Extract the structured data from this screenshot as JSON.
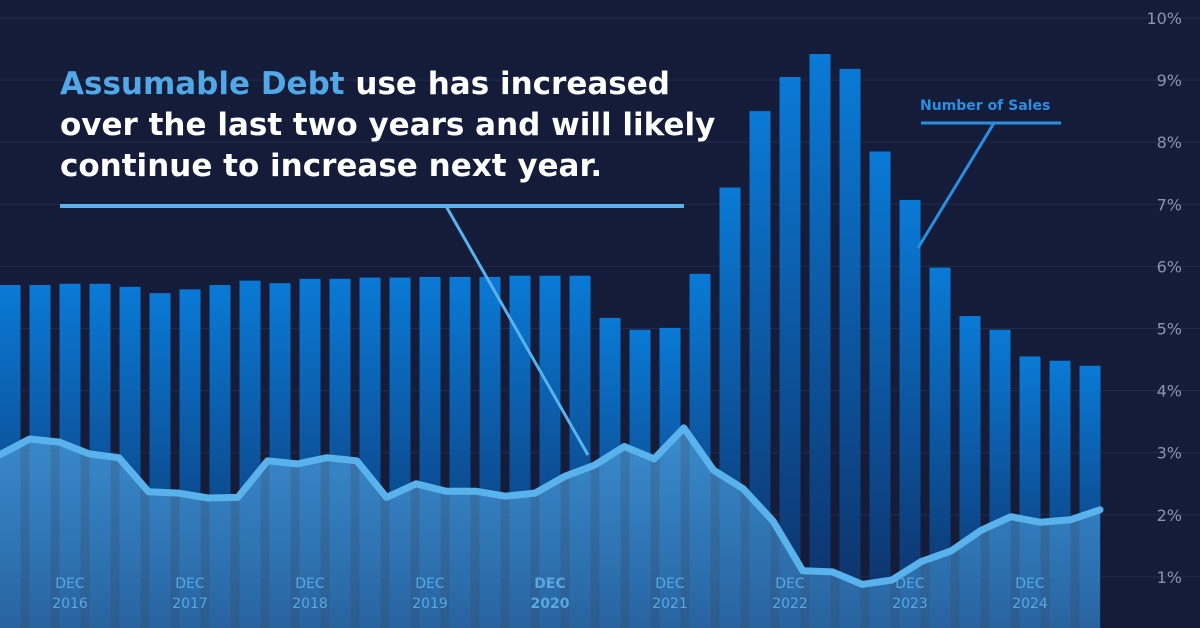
{
  "headline": {
    "highlight": "Assumable Debt",
    "line1_rest": " use has increased",
    "line2": "over the last two years and will likely",
    "line3": "continue to increase next year."
  },
  "colors": {
    "background": "#141c3a",
    "bar_top": "#0a7ad6",
    "bar_bottom": "#0e2f66",
    "line": "#5ab2ec",
    "area": "#3f8fd0",
    "accent_text": "#52a8e6",
    "axis_text": "#8a94b0",
    "series_label": "#2a8fe0"
  },
  "chart_data": {
    "type": "bar",
    "y_axis": {
      "side": "right",
      "range": [
        0.5,
        10
      ],
      "ticks": [
        "1%",
        "2%",
        "3%",
        "4%",
        "5%",
        "6%",
        "7%",
        "8%",
        "9%",
        "10%"
      ]
    },
    "x_tick_labels": [
      {
        "month": "DEC",
        "year": "2016",
        "bar_index": 2
      },
      {
        "month": "DEC",
        "year": "2017",
        "bar_index": 6
      },
      {
        "month": "DEC",
        "year": "2018",
        "bar_index": 10
      },
      {
        "month": "DEC",
        "year": "2019",
        "bar_index": 14
      },
      {
        "month": "DEC",
        "year": "2020",
        "bar_index": 18,
        "emphasis": true
      },
      {
        "month": "DEC",
        "year": "2021",
        "bar_index": 22
      },
      {
        "month": "DEC",
        "year": "2022",
        "bar_index": 26
      },
      {
        "month": "DEC",
        "year": "2023",
        "bar_index": 30
      },
      {
        "month": "DEC",
        "year": "2024",
        "bar_index": 34
      }
    ],
    "series": [
      {
        "name": "Number of Sales",
        "type": "bar",
        "values": [
          5.7,
          5.7,
          5.72,
          5.72,
          5.67,
          5.57,
          5.63,
          5.7,
          5.77,
          5.73,
          5.8,
          5.8,
          5.82,
          5.82,
          5.83,
          5.83,
          5.83,
          5.85,
          5.85,
          5.85,
          5.17,
          4.98,
          5.01,
          5.88,
          7.27,
          8.5,
          9.05,
          9.42,
          9.18,
          7.85,
          7.07,
          5.98,
          5.2,
          4.98,
          4.55,
          4.48,
          4.4
        ]
      },
      {
        "type": "line",
        "values": [
          2.97,
          3.22,
          3.17,
          2.98,
          2.92,
          2.37,
          2.35,
          2.27,
          2.28,
          2.87,
          2.82,
          2.92,
          2.87,
          2.28,
          2.5,
          2.38,
          2.38,
          2.3,
          2.35,
          2.62,
          2.8,
          3.1,
          2.9,
          3.4,
          2.72,
          2.42,
          1.9,
          1.1,
          1.08,
          0.88,
          0.95,
          1.25,
          1.42,
          1.75,
          1.97,
          1.88,
          1.92,
          2.08
        ]
      }
    ]
  }
}
